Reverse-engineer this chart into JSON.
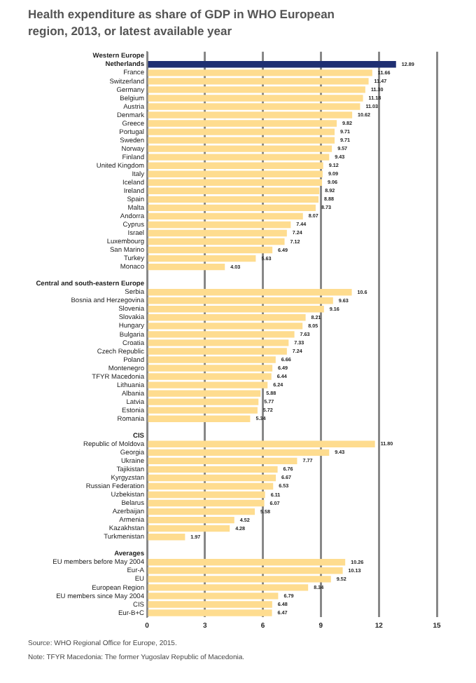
{
  "chart_data": {
    "type": "bar",
    "orientation": "horizontal",
    "title": "Health expenditure as share of GDP in WHO European region, 2013, or latest available year",
    "categories": [
      "Western Europe",
      "Netherlands",
      "France",
      "Switzerland",
      "Germany",
      "Belgium",
      "Austria",
      "Denmark",
      "Greece",
      "Portugal",
      "Sweden",
      "Norway",
      "Finland",
      "United Kingdom",
      "Italy",
      "Iceland",
      "Ireland",
      "Spain",
      "Malta",
      "Andorra",
      "Cyprus",
      "Israel",
      "Luxembourg",
      "San Marino",
      "Turkey",
      "Monaco",
      null,
      "Central and south-eastern Europe",
      "Serbia",
      "Bosnia and Herzegovina",
      "Slovenia",
      "Slovakia",
      "Hungary",
      "Bulgaria",
      "Croatia",
      "Czech Republic",
      "Poland",
      "Montenegro",
      "TFYR Macedonia",
      "Lithuania",
      "Albania",
      "Latvia",
      "Estonia",
      "Romania",
      null,
      "CIS",
      "Republic of Moldova",
      "Georgia",
      "Ukraine",
      "Tajikistan",
      "Kyrgyzstan",
      "Russian Federation",
      "Uzbekistan",
      "Belarus",
      "Azerbaijan",
      "Armenia",
      "Kazakhstan",
      "Turkmenistan",
      null,
      "Averages",
      "EU members before May 2004",
      "Eur-A",
      "EU",
      "European Region",
      "EU members since May 2004",
      "CIS",
      "Eur-B+C"
    ],
    "values": [
      null,
      12.89,
      11.66,
      11.47,
      11.3,
      11.18,
      11.03,
      10.62,
      9.82,
      9.71,
      9.71,
      9.57,
      9.43,
      9.12,
      9.09,
      9.06,
      8.92,
      8.88,
      8.73,
      8.07,
      7.44,
      7.24,
      7.12,
      6.49,
      5.63,
      4.03,
      null,
      null,
      10.6,
      9.63,
      9.16,
      8.21,
      8.05,
      7.63,
      7.33,
      7.24,
      6.66,
      6.49,
      6.44,
      6.24,
      5.88,
      5.77,
      5.72,
      5.34,
      null,
      null,
      11.8,
      9.43,
      7.77,
      6.76,
      6.67,
      6.53,
      6.11,
      6.07,
      5.58,
      4.52,
      4.28,
      1.97,
      null,
      null,
      10.26,
      10.13,
      9.52,
      8.34,
      6.79,
      6.48,
      6.47
    ],
    "value_labels": [
      null,
      "12.89",
      "11.66",
      "11.47",
      "11.30",
      "11.18",
      "11.03",
      "10.62",
      "9.82",
      "9.71",
      "9.71",
      "9.57",
      "9.43",
      "9.12",
      "9.09",
      "9.06",
      "8.92",
      "8.88",
      "8.73",
      "8.07",
      "7.44",
      "7.24",
      "7.12",
      "6.49",
      "5.63",
      "4.03",
      null,
      null,
      "10.6",
      "9.63",
      "9.16",
      "8.21",
      "8.05",
      "7.63",
      "7.33",
      "7.24",
      "6.66",
      "6.49",
      "6.44",
      "6.24",
      "5.88",
      "5.77",
      "5.72",
      "5.34",
      null,
      null,
      "11.80",
      "9.43",
      "7.77",
      "6.76",
      "6.67",
      "6.53",
      "6.11",
      "6.07",
      "5.58",
      "4.52",
      "4.28",
      "1.97",
      null,
      null,
      "10.26",
      "10.13",
      "9.52",
      "8.34",
      "6.79",
      "6.48",
      "6.47"
    ],
    "colors": [
      "#fedc8f",
      "#1f2f72",
      "#fedc8f",
      "#fedc8f",
      "#fedc8f",
      "#fedc8f",
      "#fedc8f",
      "#fedc8f",
      "#fedc8f",
      "#fedc8f",
      "#fedc8f",
      "#fedc8f",
      "#fedc8f",
      "#fedc8f",
      "#fedc8f",
      "#fedc8f",
      "#fedc8f",
      "#fedc8f",
      "#fedc8f",
      "#fedc8f",
      "#fedc8f",
      "#fedc8f",
      "#fedc8f",
      "#fedc8f",
      "#fedc8f",
      "#fedc8f",
      "#fedc8f",
      "#fedc8f",
      "#fedc8f",
      "#fedc8f",
      "#fedc8f",
      "#fedc8f",
      "#fedc8f",
      "#fedc8f",
      "#fedc8f",
      "#fedc8f",
      "#fedc8f",
      "#fedc8f",
      "#fedc8f",
      "#fedc8f",
      "#fedc8f",
      "#fedc8f",
      "#fedc8f",
      "#fedc8f",
      "#fedc8f",
      "#fedc8f",
      "#fedc8f",
      "#fedc8f",
      "#fedc8f",
      "#fedc8f",
      "#fedc8f",
      "#fedc8f",
      "#fedc8f",
      "#fedc8f",
      "#fedc8f",
      "#fedc8f",
      "#fedc8f",
      "#fedc8f",
      "#fedc8f",
      "#fedc8f",
      "#fedc8f",
      "#fedc8f",
      "#fedc8f",
      "#fedc8f",
      "#fedc8f",
      "#fedc8f",
      "#fedc8f"
    ],
    "xlim": [
      0,
      15
    ],
    "xticks": [
      0,
      3,
      6,
      9,
      12,
      15
    ],
    "grid": "x",
    "legend": false,
    "annotations": [
      "Source: WHO Regional Office for Europe, 2015.",
      "Note: TFYR Macedonia: The former Yugoslav Republic of Macedonia."
    ]
  }
}
